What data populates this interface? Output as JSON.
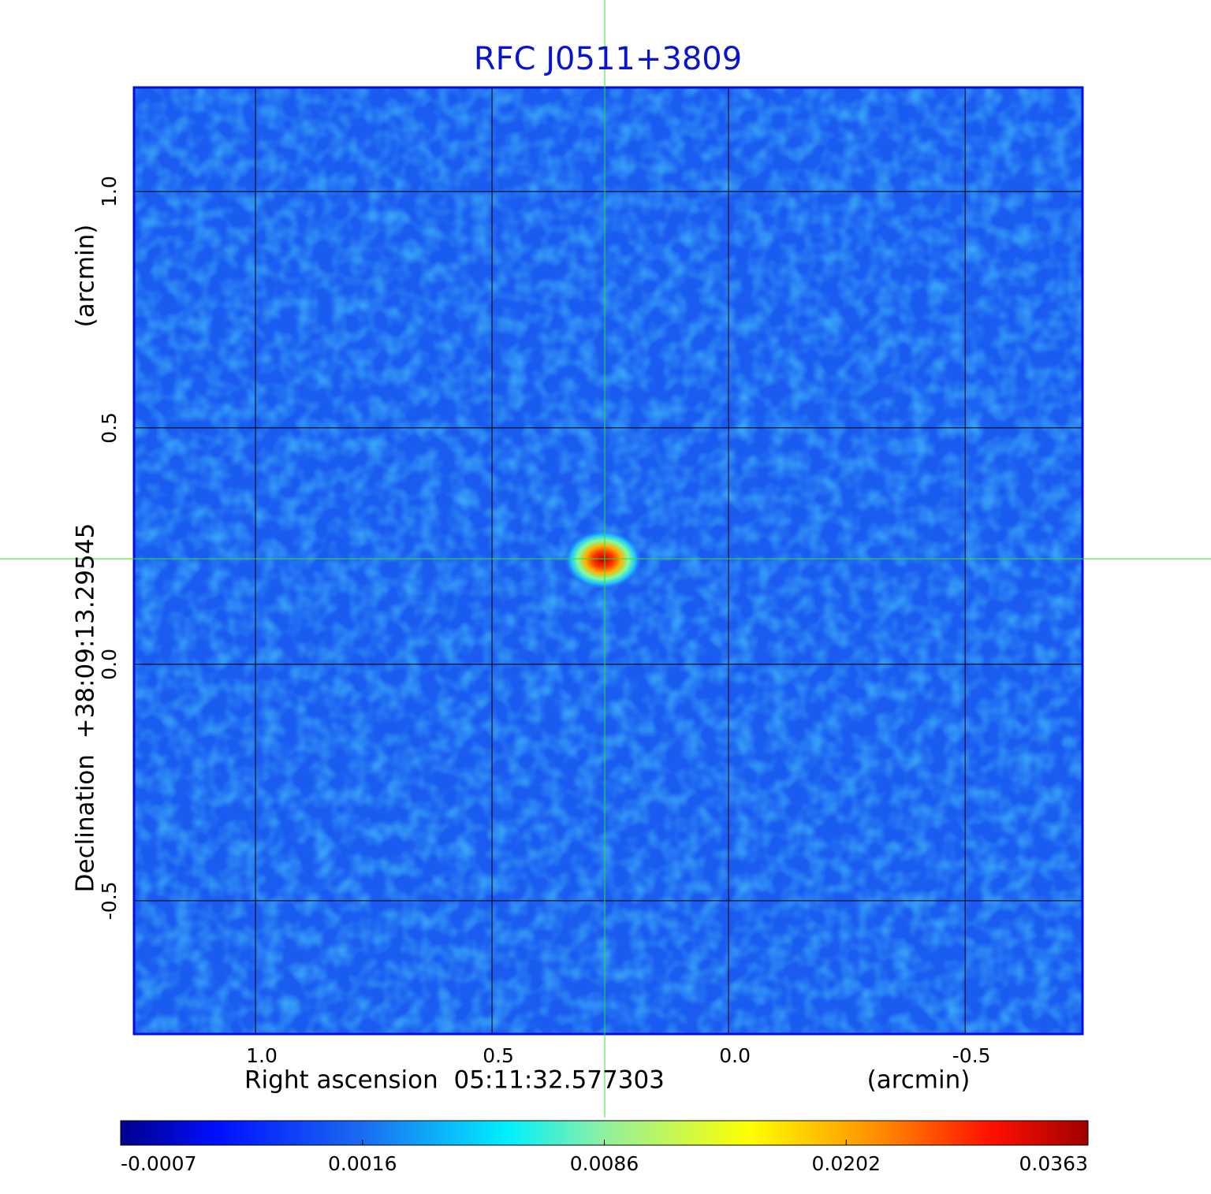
{
  "chart_data": {
    "type": "image",
    "title": "RFC J0511+3809",
    "xlabel": "Right ascension  05:11:32.577303",
    "xunit": "(arcmin)",
    "ylabel": "Declination  +38:09:13.29545",
    "yunit": "(arcmin)",
    "xlim": [
      1.2567,
      -0.748
    ],
    "ylim": [
      -0.782,
      1.22
    ],
    "xticks": [
      {
        "value": 1,
        "label": "1.0"
      },
      {
        "value": 0.5,
        "label": "0.5"
      },
      {
        "value": 0,
        "label": "0.0"
      },
      {
        "value": -0.5,
        "label": "-0.5"
      }
    ],
    "yticks": [
      {
        "value": 1,
        "label": "1.0"
      },
      {
        "value": 0.5,
        "label": "0.5"
      },
      {
        "value": 0,
        "label": "0.0"
      },
      {
        "value": -0.5,
        "label": "-0.5"
      }
    ],
    "grid": true,
    "colorbar_ticks": [
      -0.0007,
      0.0016,
      0.0086,
      0.0202,
      0.0363
    ]
  }
}
